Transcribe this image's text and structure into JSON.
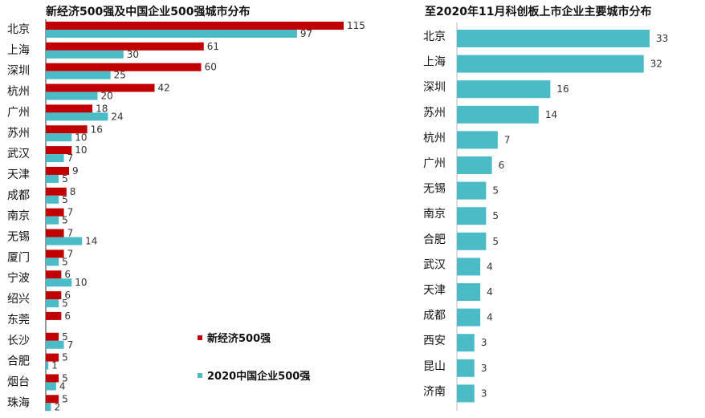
{
  "chart_data": [
    {
      "type": "bar",
      "orientation": "horizontal",
      "title": "新经济500强及中国企业500强城市分布",
      "categories": [
        "北京",
        "上海",
        "深圳",
        "杭州",
        "广州",
        "苏州",
        "武汉",
        "天津",
        "成都",
        "南京",
        "无锡",
        "厦门",
        "宁波",
        "绍兴",
        "东莞",
        "长沙",
        "合肥",
        "烟台",
        "珠海"
      ],
      "series": [
        {
          "name": "新经济500强",
          "color": "#C00000",
          "values": [
            115,
            61,
            60,
            42,
            18,
            16,
            10,
            9,
            8,
            7,
            7,
            7,
            6,
            6,
            6,
            5,
            5,
            5,
            5
          ]
        },
        {
          "name": "2020中国企业500强",
          "color": "#4BBCC7",
          "values": [
            97,
            30,
            25,
            20,
            24,
            10,
            7,
            5,
            5,
            5,
            14,
            5,
            10,
            5,
            null,
            7,
            1,
            4,
            2
          ]
        }
      ],
      "legend": "bottom-right"
    },
    {
      "type": "bar",
      "orientation": "horizontal",
      "title": "至2020年11月科创板上市企业主要城市分布",
      "categories": [
        "北京",
        "上海",
        "深圳",
        "苏州",
        "杭州",
        "广州",
        "无锡",
        "南京",
        "合肥",
        "武汉",
        "天津",
        "成都",
        "西安",
        "昆山",
        "济南"
      ],
      "series": [
        {
          "color": "#4BBCC7",
          "values": [
            33,
            32,
            16,
            14,
            7,
            6,
            5,
            5,
            5,
            4,
            4,
            4,
            3,
            3,
            3
          ]
        }
      ]
    }
  ]
}
